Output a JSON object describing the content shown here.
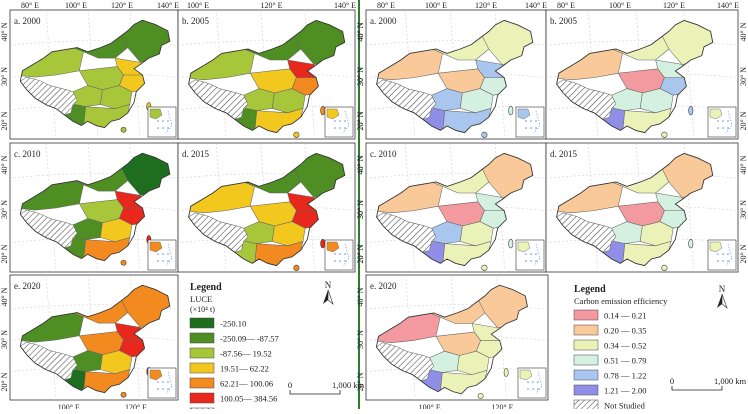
{
  "figure": {
    "left_block": {
      "panels": [
        {
          "label": "a. 2000"
        },
        {
          "label": "b. 2005"
        },
        {
          "label": "c. 2010"
        },
        {
          "label": "d. 2015"
        },
        {
          "label": "e. 2020"
        }
      ],
      "lon_ticks_top_left": [
        "80° E",
        "100° E",
        "120° E",
        "140° E"
      ],
      "lon_ticks_top_right": [
        "100° E",
        "120° E",
        "140° E"
      ],
      "lon_ticks_bottom": [
        "100° E",
        "120° E"
      ],
      "lat_ticks": [
        "40° N",
        "30° N",
        "20° N"
      ],
      "legend": {
        "title": "Legend",
        "variable": "LUCE",
        "unit": "(×10⁴ t)",
        "classes": [
          {
            "label": "-250.10",
            "color": "#1f6e1f"
          },
          {
            "label": "-250.09— -87.57",
            "color": "#4f8e22"
          },
          {
            "label": "-87.56— 19.52",
            "color": "#a7c63a"
          },
          {
            "label": "19.51— 62.22",
            "color": "#f2c81f"
          },
          {
            "label": "62.21— 100.06",
            "color": "#f28a1f"
          },
          {
            "label": "100.05— 384.56",
            "color": "#e8281c"
          },
          {
            "label": "Not Studied",
            "color": "hatch"
          }
        ],
        "scale_bar": {
          "start": "0",
          "end": "1,000 km"
        },
        "north_label": "N"
      }
    },
    "right_block": {
      "panels": [
        {
          "label": "a. 2000"
        },
        {
          "label": "b. 2005"
        },
        {
          "label": "c. 2010"
        },
        {
          "label": "d. 2015"
        },
        {
          "label": "e. 2020"
        }
      ],
      "lon_ticks_top_left": [
        "80° E",
        "100° E",
        "120° E",
        "140° E"
      ],
      "lon_ticks_top_right": [
        "80° E",
        "100° E",
        "120° E",
        "140° E"
      ],
      "lon_ticks_bottom": [
        "100° E",
        "120° E"
      ],
      "lat_ticks": [
        "40° N",
        "30° N",
        "20° N"
      ],
      "legend": {
        "title": "Legend",
        "variable": "Carbon emission efficiency",
        "classes": [
          {
            "label": "0.14 — 0.21",
            "color": "#f29aa0"
          },
          {
            "label": "0.20 — 0.35",
            "color": "#f9c99a"
          },
          {
            "label": "0.34 — 0.52",
            "color": "#ebf2b8"
          },
          {
            "label": "0.51 — 0.79",
            "color": "#d3f0e0"
          },
          {
            "label": "0.78 — 1.22",
            "color": "#a9c7ee"
          },
          {
            "label": "1.21 — 2.00",
            "color": "#8f8fe8"
          },
          {
            "label": "Not Studied",
            "color": "hatch"
          }
        ],
        "scale_bar": {
          "start": "0",
          "end": "1,000 km"
        },
        "north_label": "N"
      }
    }
  }
}
